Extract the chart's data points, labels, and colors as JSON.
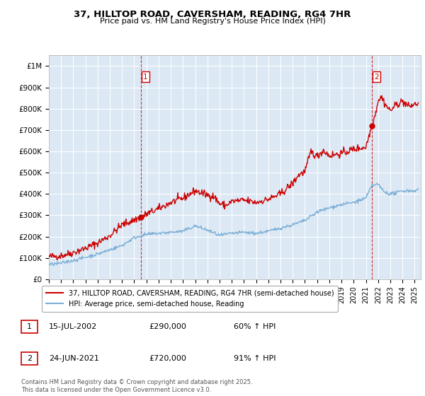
{
  "title1": "37, HILLTOP ROAD, CAVERSHAM, READING, RG4 7HR",
  "title2": "Price paid vs. HM Land Registry's House Price Index (HPI)",
  "ylabel_ticks": [
    "£1M",
    "£900K",
    "£800K",
    "£700K",
    "£600K",
    "£500K",
    "£400K",
    "£300K",
    "£200K",
    "£100K",
    "£0"
  ],
  "ytick_vals": [
    1000000,
    900000,
    800000,
    700000,
    600000,
    500000,
    400000,
    300000,
    200000,
    100000,
    0
  ],
  "ylim": [
    0,
    1050000
  ],
  "xlim_start": 1995.0,
  "xlim_end": 2025.5,
  "chart_bg_color": "#dce9f5",
  "red_color": "#cc0000",
  "blue_color": "#7aadd4",
  "marker1_x": 2002.54,
  "marker1_y": 290000,
  "marker2_x": 2021.48,
  "marker2_y": 720000,
  "legend_label_red": "37, HILLTOP ROAD, CAVERSHAM, READING, RG4 7HR (semi-detached house)",
  "legend_label_blue": "HPI: Average price, semi-detached house, Reading",
  "table_row1": [
    "1",
    "15-JUL-2002",
    "£290,000",
    "60% ↑ HPI"
  ],
  "table_row2": [
    "2",
    "24-JUN-2021",
    "£720,000",
    "91% ↑ HPI"
  ],
  "footnote": "Contains HM Land Registry data © Crown copyright and database right 2025.\nThis data is licensed under the Open Government Licence v3.0.",
  "bg_color": "#ffffff",
  "grid_color": "#ffffff",
  "red_curve_knots_x": [
    1995,
    1996,
    1997,
    1998,
    1999,
    2000,
    2001,
    2002.54,
    2003,
    2004,
    2005,
    2006,
    2007,
    2008,
    2008.5,
    2009,
    2009.5,
    2010,
    2011,
    2012,
    2013,
    2014,
    2015,
    2015.5,
    2016,
    2016.5,
    2017,
    2017.5,
    2018,
    2019,
    2020,
    2021.0,
    2021.48,
    2021.8,
    2022.0,
    2022.3,
    2022.6,
    2023.0,
    2023.5,
    2024.0,
    2024.5,
    2025.0,
    2025.3
  ],
  "red_curve_knots_y": [
    105000,
    110000,
    125000,
    145000,
    170000,
    205000,
    255000,
    290000,
    305000,
    330000,
    360000,
    380000,
    415000,
    395000,
    390000,
    355000,
    345000,
    365000,
    370000,
    360000,
    375000,
    400000,
    450000,
    490000,
    505000,
    600000,
    575000,
    605000,
    580000,
    590000,
    610000,
    620000,
    720000,
    780000,
    840000,
    855000,
    820000,
    790000,
    820000,
    835000,
    810000,
    820000,
    825000
  ],
  "blue_curve_knots_x": [
    1995,
    1996,
    1997,
    1998,
    1999,
    2000,
    2001,
    2002,
    2003,
    2004,
    2005,
    2006,
    2007,
    2008,
    2009,
    2009.5,
    2010,
    2011,
    2012,
    2013,
    2014,
    2015,
    2016,
    2017,
    2018,
    2019,
    2020,
    2021.0,
    2021.5,
    2022.0,
    2022.5,
    2023.0,
    2023.5,
    2024.0,
    2024.5,
    2025.0,
    2025.3
  ],
  "blue_curve_knots_y": [
    68000,
    75000,
    88000,
    102000,
    118000,
    138000,
    158000,
    195000,
    210000,
    215000,
    220000,
    225000,
    250000,
    230000,
    205000,
    210000,
    215000,
    220000,
    215000,
    225000,
    240000,
    255000,
    275000,
    315000,
    335000,
    350000,
    360000,
    380000,
    440000,
    445000,
    410000,
    400000,
    405000,
    415000,
    415000,
    415000,
    420000
  ]
}
